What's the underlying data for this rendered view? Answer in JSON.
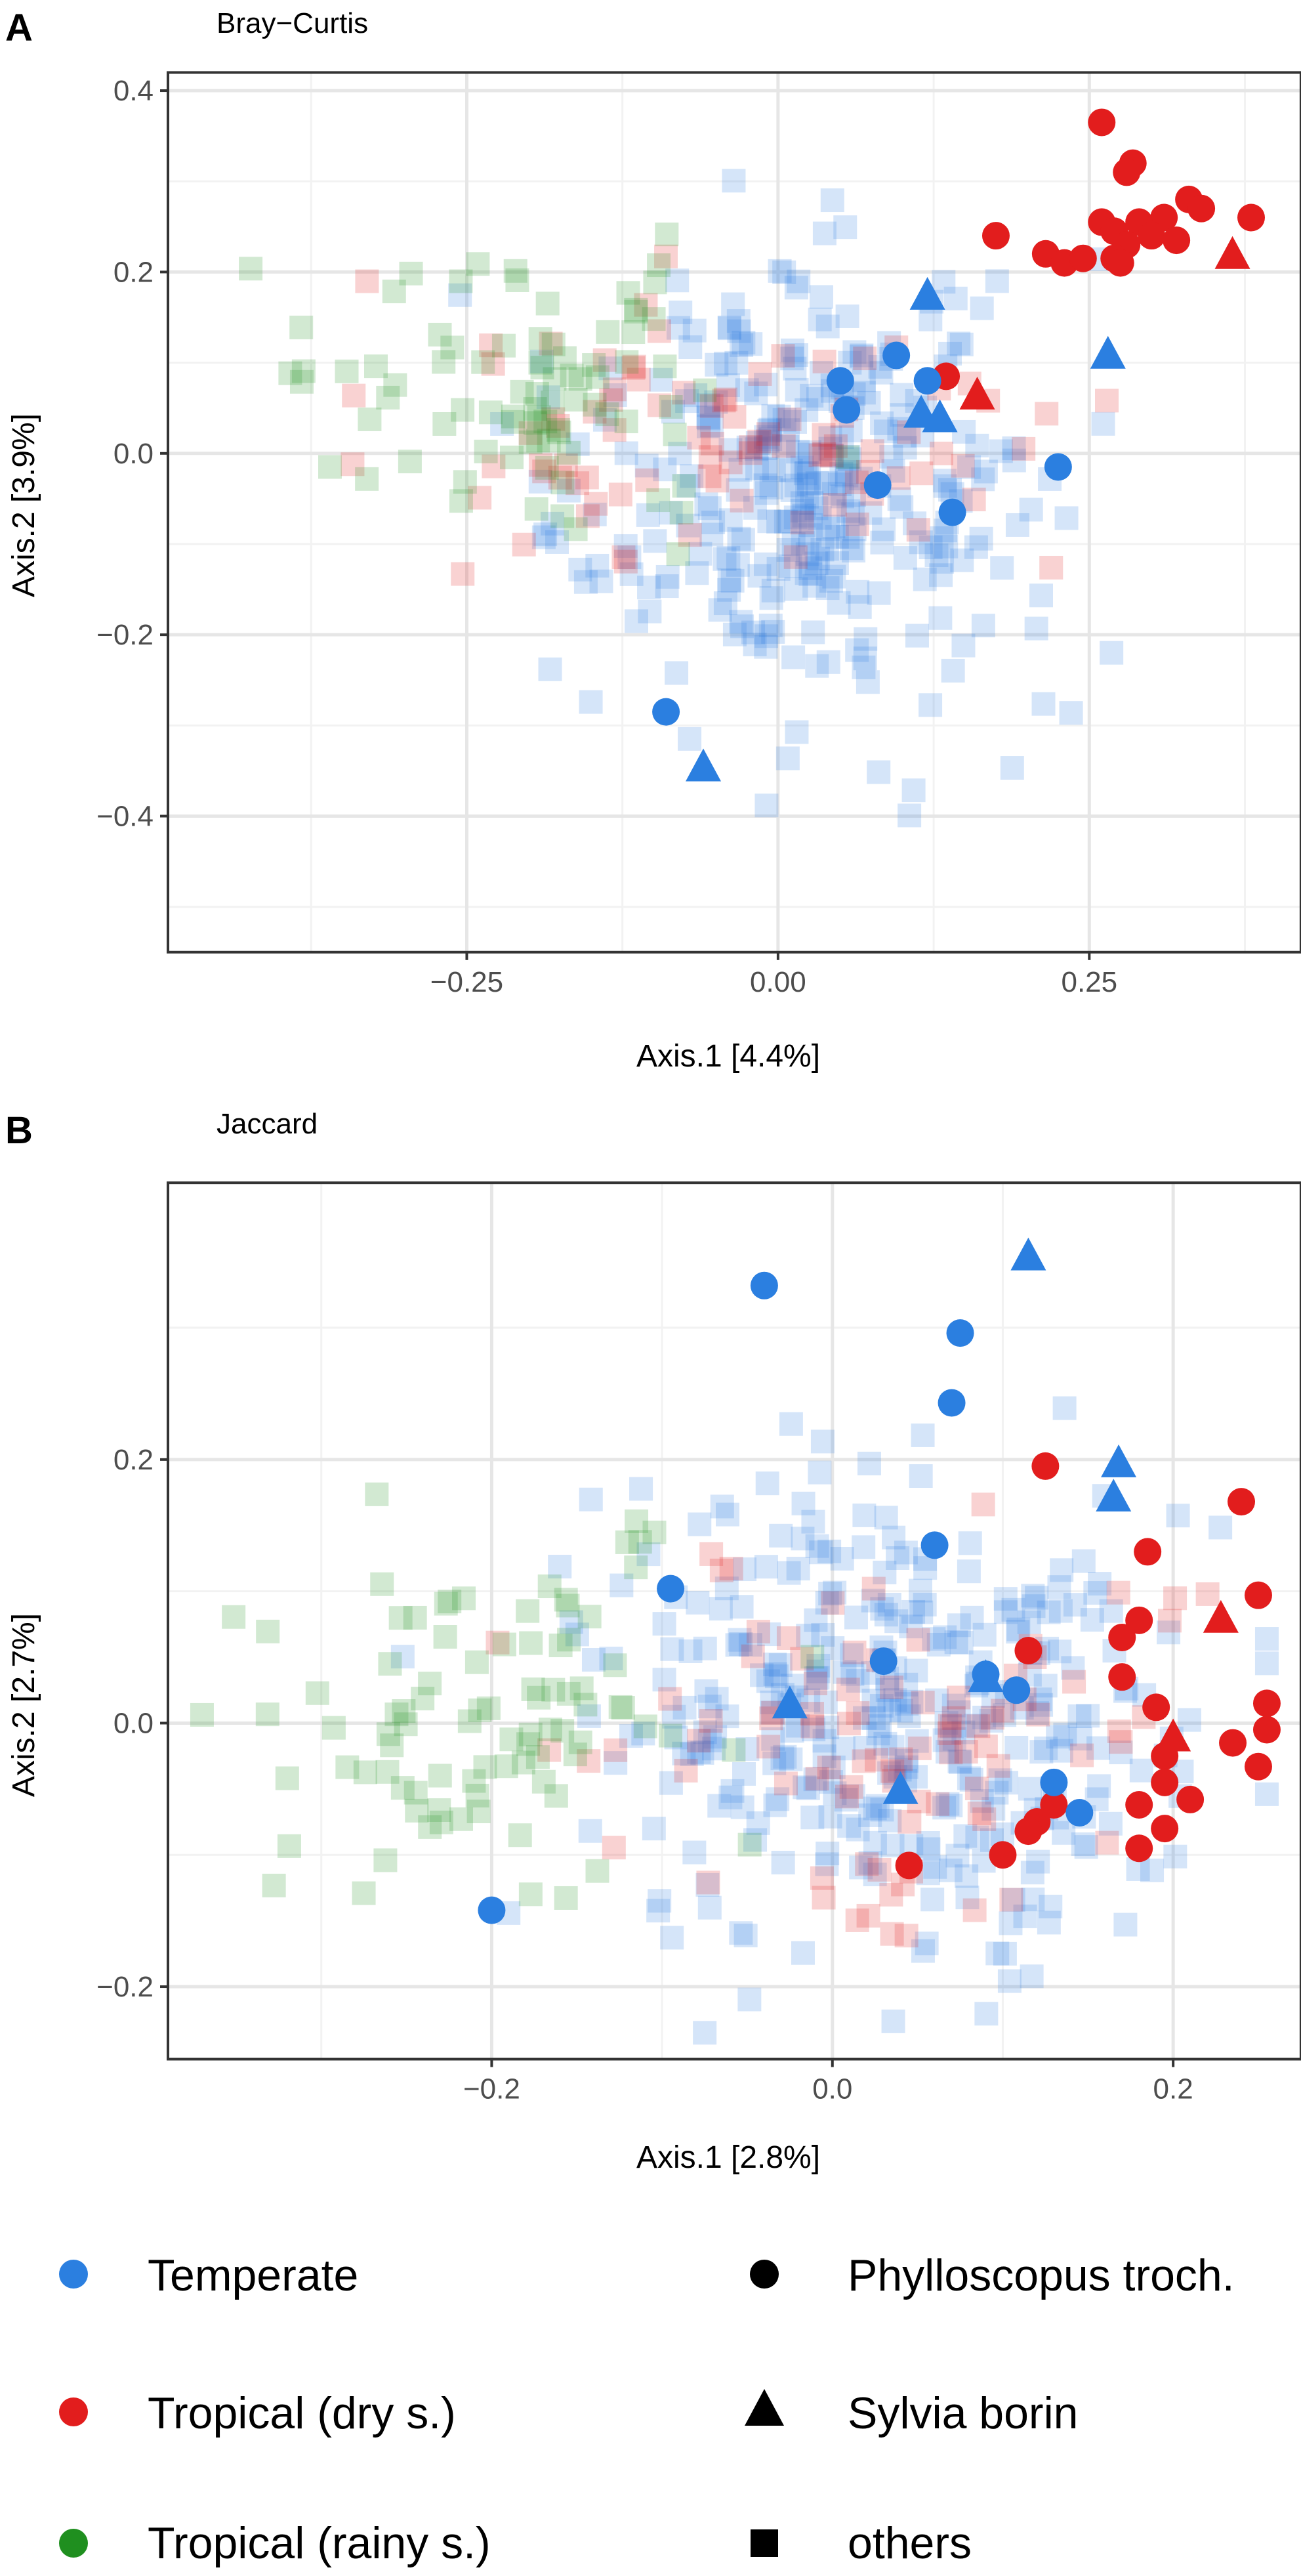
{
  "colors": {
    "temperate": "#2b7fe0",
    "tropical_dry": "#e21d1d",
    "tropical_rainy": "#1f8f1f",
    "grid_major": "#e6e6e6",
    "grid_minor": "#f2f2f2",
    "frame": "#333333",
    "tick_text": "#4d4d4d"
  },
  "legend": {
    "groups": [
      {
        "label": "Temperate",
        "color_key": "temperate"
      },
      {
        "label": "Tropical (dry s.)",
        "color_key": "tropical_dry"
      },
      {
        "label": "Tropical (rainy s.)",
        "color_key": "tropical_rainy"
      }
    ],
    "species": [
      {
        "label": "Phylloscopus troch.",
        "shape": "circle"
      },
      {
        "label": "Sylvia borin",
        "shape": "triangle"
      },
      {
        "label": "others",
        "shape": "square"
      }
    ]
  },
  "chart_data": [
    {
      "panel": "A",
      "type": "scatter",
      "title": "Bray−Curtis",
      "xlabel": "Axis.1   [4.4%]",
      "ylabel": "Axis.2   [3.9%]",
      "xlim": [
        -0.49,
        0.42
      ],
      "ylim": [
        -0.55,
        0.42
      ],
      "xticks": [
        -0.25,
        0.0,
        0.25
      ],
      "xtick_labels": [
        "−0.25",
        "0.00",
        "0.25"
      ],
      "yticks": [
        0.4,
        0.2,
        0.0,
        -0.2,
        -0.4
      ],
      "ytick_labels": [
        "0.4",
        "0.2",
        "0.0",
        "−0.2",
        "−0.4"
      ],
      "xminor": [
        -0.375,
        -0.125,
        0.125,
        0.375
      ],
      "yminor": [
        0.3,
        0.1,
        -0.1,
        -0.3,
        -0.5
      ],
      "highlight": [
        {
          "group": "tropical_dry",
          "shape": "circle",
          "points": [
            [
              0.26,
              0.365
            ],
            [
              0.285,
              0.32
            ],
            [
              0.28,
              0.31
            ],
            [
              0.38,
              0.26
            ],
            [
              0.33,
              0.28
            ],
            [
              0.31,
              0.26
            ],
            [
              0.34,
              0.27
            ],
            [
              0.175,
              0.24
            ],
            [
              0.26,
              0.255
            ],
            [
              0.27,
              0.245
            ],
            [
              0.29,
              0.255
            ],
            [
              0.28,
              0.23
            ],
            [
              0.3,
              0.24
            ],
            [
              0.32,
              0.235
            ],
            [
              0.215,
              0.22
            ],
            [
              0.23,
              0.21
            ],
            [
              0.245,
              0.215
            ],
            [
              0.27,
              0.215
            ],
            [
              0.275,
              0.21
            ],
            [
              0.135,
              0.085
            ]
          ]
        },
        {
          "group": "tropical_dry",
          "shape": "triangle",
          "points": [
            [
              0.365,
              0.22
            ],
            [
              0.16,
              0.065
            ]
          ]
        },
        {
          "group": "temperate",
          "shape": "circle",
          "points": [
            [
              0.095,
              0.108
            ],
            [
              0.05,
              0.08
            ],
            [
              0.055,
              0.048
            ],
            [
              0.12,
              0.08
            ],
            [
              0.225,
              -0.015
            ],
            [
              0.08,
              -0.035
            ],
            [
              0.14,
              -0.065
            ],
            [
              -0.09,
              -0.285
            ]
          ]
        },
        {
          "group": "temperate",
          "shape": "triangle",
          "points": [
            [
              0.12,
              0.175
            ],
            [
              0.265,
              0.11
            ],
            [
              0.115,
              0.045
            ],
            [
              0.13,
              0.04
            ],
            [
              -0.06,
              -0.345
            ]
          ]
        }
      ]
    },
    {
      "panel": "B",
      "type": "scatter",
      "title": "Jaccard",
      "xlabel": "Axis.1   [2.8%]",
      "ylabel": "Axis.2   [2.7%]",
      "xlim": [
        -0.39,
        0.275
      ],
      "ylim": [
        -0.255,
        0.41
      ],
      "xticks": [
        -0.2,
        0.0,
        0.2
      ],
      "xtick_labels": [
        "−0.2",
        "0.0",
        "0.2"
      ],
      "yticks": [
        0.2,
        0.0,
        -0.2
      ],
      "ytick_labels": [
        "0.2",
        "0.0",
        "−0.2"
      ],
      "xminor": [
        -0.3,
        -0.1,
        0.1
      ],
      "yminor": [
        0.3,
        0.1,
        -0.1
      ],
      "highlight": [
        {
          "group": "tropical_dry",
          "shape": "circle",
          "points": [
            [
              0.125,
              0.195
            ],
            [
              0.24,
              0.168
            ],
            [
              0.185,
              0.13
            ],
            [
              0.25,
              0.097
            ],
            [
              0.18,
              0.078
            ],
            [
              0.17,
              0.065
            ],
            [
              0.115,
              0.055
            ],
            [
              0.17,
              0.035
            ],
            [
              0.19,
              0.012
            ],
            [
              0.255,
              0.015
            ],
            [
              0.235,
              -0.015
            ],
            [
              0.255,
              -0.005
            ],
            [
              0.195,
              -0.025
            ],
            [
              0.195,
              -0.045
            ],
            [
              0.25,
              -0.033
            ],
            [
              0.21,
              -0.058
            ],
            [
              0.18,
              -0.062
            ],
            [
              0.13,
              -0.062
            ],
            [
              0.12,
              -0.075
            ],
            [
              0.115,
              -0.082
            ],
            [
              0.195,
              -0.08
            ],
            [
              0.18,
              -0.095
            ],
            [
              0.1,
              -0.1
            ],
            [
              0.045,
              -0.108
            ]
          ]
        },
        {
          "group": "tropical_dry",
          "shape": "triangle",
          "points": [
            [
              0.228,
              0.08
            ],
            [
              0.2,
              -0.01
            ]
          ]
        },
        {
          "group": "temperate",
          "shape": "circle",
          "points": [
            [
              -0.04,
              0.332
            ],
            [
              0.075,
              0.296
            ],
            [
              0.07,
              0.243
            ],
            [
              0.06,
              0.135
            ],
            [
              -0.095,
              0.102
            ],
            [
              0.03,
              0.047
            ],
            [
              0.09,
              0.037
            ],
            [
              0.108,
              0.025
            ],
            [
              0.13,
              -0.045
            ],
            [
              0.145,
              -0.068
            ],
            [
              -0.2,
              -0.142
            ]
          ]
        },
        {
          "group": "temperate",
          "shape": "triangle",
          "points": [
            [
              0.115,
              0.355
            ],
            [
              0.168,
              0.198
            ],
            [
              0.165,
              0.172
            ],
            [
              -0.025,
              0.015
            ],
            [
              0.09,
              0.035
            ],
            [
              0.04,
              -0.05
            ]
          ]
        }
      ]
    }
  ]
}
